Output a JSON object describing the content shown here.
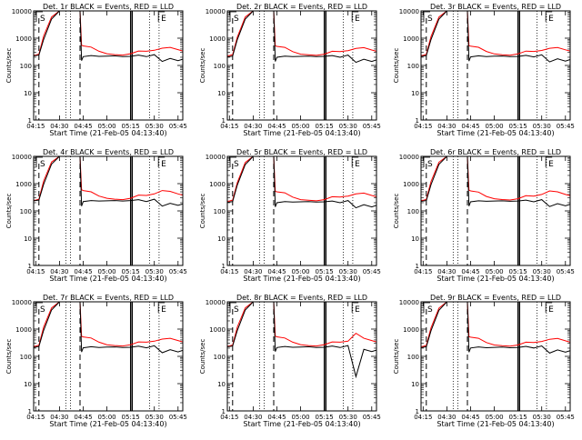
{
  "chart_data": [
    {
      "type": "line",
      "title": "Det. 1r BLACK = Events, RED = LLD",
      "xlabel": "Start Time (21-Feb-05 04:13:40)",
      "ylabel": "Counts/sec",
      "y_scale": "log",
      "ylim": [
        1,
        10000
      ],
      "x_ticks": [
        "04:15",
        "04:30",
        "04:45",
        "05:00",
        "05:15",
        "05:30",
        "05:45"
      ],
      "y_ticks": [
        "1",
        "10",
        "100",
        "1000",
        "10000"
      ],
      "annotations": [
        "S",
        "E"
      ],
      "x": [
        "04:13",
        "04:15",
        "04:17",
        "04:20",
        "04:25",
        "04:30",
        "04:35",
        "04:40",
        "04:43",
        "04:44",
        "04:45",
        "04:50",
        "04:55",
        "05:00",
        "05:05",
        "05:10",
        "05:15",
        "05:20",
        "05:25",
        "05:30",
        "05:35",
        "05:40",
        "05:45",
        "05:48"
      ],
      "series": [
        {
          "name": "Events",
          "color": "#000000",
          "values": [
            220,
            230,
            240,
            900,
            5000,
            10000,
            10000,
            10000,
            10000,
            150,
            210,
            230,
            215,
            220,
            225,
            210,
            215,
            240,
            210,
            250,
            140,
            180,
            150,
            170
          ]
        },
        {
          "name": "LLD",
          "color": "#ff0000",
          "values": [
            230,
            240,
            260,
            1200,
            6000,
            10000,
            10000,
            10000,
            10000,
            550,
            520,
            470,
            330,
            270,
            250,
            240,
            270,
            340,
            330,
            360,
            430,
            460,
            380,
            340
          ]
        }
      ]
    },
    {
      "type": "line",
      "title": "Det. 2r BLACK = Events, RED = LLD",
      "xlabel": "Start Time (21-Feb-05 04:13:40)",
      "ylabel": "Counts/sec",
      "y_scale": "log",
      "ylim": [
        1,
        10000
      ],
      "x_ticks": [
        "04:15",
        "04:30",
        "04:45",
        "05:00",
        "05:15",
        "05:30",
        "05:45"
      ],
      "y_ticks": [
        "1",
        "10",
        "100",
        "1000",
        "10000"
      ],
      "annotations": [
        "S",
        "E"
      ],
      "x": [
        "04:13",
        "04:15",
        "04:17",
        "04:20",
        "04:25",
        "04:30",
        "04:35",
        "04:40",
        "04:43",
        "04:44",
        "04:45",
        "04:50",
        "04:55",
        "05:00",
        "05:05",
        "05:10",
        "05:15",
        "05:20",
        "05:25",
        "05:30",
        "05:35",
        "05:40",
        "05:45",
        "05:48"
      ],
      "series": [
        {
          "name": "Events",
          "color": "#000000",
          "values": [
            200,
            210,
            220,
            900,
            5000,
            10000,
            10000,
            10000,
            10000,
            140,
            200,
            220,
            210,
            215,
            220,
            210,
            215,
            230,
            200,
            240,
            130,
            170,
            140,
            160
          ]
        },
        {
          "name": "LLD",
          "color": "#ff0000",
          "values": [
            220,
            230,
            250,
            1100,
            6000,
            10000,
            10000,
            10000,
            10000,
            520,
            500,
            460,
            320,
            260,
            245,
            235,
            260,
            330,
            320,
            350,
            420,
            450,
            370,
            330
          ]
        }
      ]
    },
    {
      "type": "line",
      "title": "Det. 3r BLACK = Events, RED = LLD",
      "xlabel": "Start Time (21-Feb-05 04:13:40)",
      "ylabel": "Counts/sec",
      "y_scale": "log",
      "ylim": [
        1,
        10000
      ],
      "x_ticks": [
        "04:15",
        "04:30",
        "04:45",
        "05:00",
        "05:15",
        "05:30",
        "05:45"
      ],
      "y_ticks": [
        "1",
        "10",
        "100",
        "1000",
        "10000"
      ],
      "annotations": [
        "S",
        "E"
      ],
      "x": [
        "04:13",
        "04:15",
        "04:17",
        "04:20",
        "04:25",
        "04:30",
        "04:35",
        "04:40",
        "04:43",
        "04:44",
        "04:45",
        "04:50",
        "04:55",
        "05:00",
        "05:05",
        "05:10",
        "05:15",
        "05:20",
        "05:25",
        "05:30",
        "05:35",
        "05:40",
        "05:45",
        "05:48"
      ],
      "series": [
        {
          "name": "Events",
          "color": "#000000",
          "values": [
            210,
            220,
            230,
            900,
            5000,
            10000,
            10000,
            10000,
            10000,
            145,
            205,
            225,
            210,
            218,
            222,
            212,
            214,
            235,
            205,
            245,
            135,
            175,
            145,
            165
          ]
        },
        {
          "name": "LLD",
          "color": "#ff0000",
          "values": [
            225,
            235,
            255,
            1150,
            6000,
            10000,
            10000,
            10000,
            10000,
            530,
            510,
            465,
            325,
            265,
            248,
            238,
            265,
            335,
            325,
            355,
            425,
            455,
            375,
            335
          ]
        }
      ]
    },
    {
      "type": "line",
      "title": "Det. 4r BLACK = Events, RED = LLD",
      "xlabel": "Start Time (21-Feb-05 04:13:40)",
      "ylabel": "Counts/sec",
      "y_scale": "log",
      "ylim": [
        1,
        10000
      ],
      "x_ticks": [
        "04:15",
        "04:30",
        "04:45",
        "05:00",
        "05:15",
        "05:30",
        "05:45"
      ],
      "y_ticks": [
        "1",
        "10",
        "100",
        "1000",
        "10000"
      ],
      "annotations": [
        "S",
        "E"
      ],
      "x": [
        "04:13",
        "04:15",
        "04:17",
        "04:20",
        "04:25",
        "04:30",
        "04:35",
        "04:40",
        "04:43",
        "04:44",
        "04:45",
        "04:50",
        "04:55",
        "05:00",
        "05:05",
        "05:10",
        "05:15",
        "05:20",
        "05:25",
        "05:30",
        "05:35",
        "05:40",
        "05:45",
        "05:48"
      ],
      "series": [
        {
          "name": "Events",
          "color": "#000000",
          "values": [
            230,
            240,
            250,
            950,
            5200,
            10000,
            10000,
            10000,
            10000,
            150,
            220,
            240,
            230,
            235,
            240,
            230,
            240,
            260,
            220,
            270,
            150,
            190,
            160,
            180
          ]
        },
        {
          "name": "LLD",
          "color": "#ff0000",
          "values": [
            240,
            250,
            270,
            1250,
            6200,
            10000,
            10000,
            10000,
            10000,
            600,
            560,
            500,
            350,
            290,
            270,
            260,
            290,
            380,
            370,
            420,
            560,
            520,
            420,
            380
          ]
        }
      ]
    },
    {
      "type": "line",
      "title": "Det. 5r BLACK = Events, RED = LLD",
      "xlabel": "Start Time (21-Feb-05 04:13:40)",
      "ylabel": "Counts/sec",
      "y_scale": "log",
      "ylim": [
        1,
        10000
      ],
      "x_ticks": [
        "04:15",
        "04:30",
        "04:45",
        "05:00",
        "05:15",
        "05:30",
        "05:45"
      ],
      "y_ticks": [
        "1",
        "10",
        "100",
        "1000",
        "10000"
      ],
      "annotations": [
        "S",
        "E"
      ],
      "x": [
        "04:13",
        "04:15",
        "04:17",
        "04:20",
        "04:25",
        "04:30",
        "04:35",
        "04:40",
        "04:43",
        "04:44",
        "04:45",
        "04:50",
        "04:55",
        "05:00",
        "05:05",
        "05:10",
        "05:15",
        "05:20",
        "05:25",
        "05:30",
        "05:35",
        "05:40",
        "05:45",
        "05:48"
      ],
      "series": [
        {
          "name": "Events",
          "color": "#000000",
          "values": [
            200,
            210,
            220,
            900,
            5000,
            10000,
            10000,
            10000,
            10000,
            140,
            200,
            220,
            210,
            215,
            220,
            210,
            215,
            230,
            200,
            240,
            130,
            170,
            140,
            160
          ]
        },
        {
          "name": "LLD",
          "color": "#ff0000",
          "values": [
            220,
            230,
            250,
            1100,
            6000,
            10000,
            10000,
            10000,
            10000,
            520,
            500,
            460,
            320,
            260,
            245,
            235,
            260,
            330,
            320,
            350,
            420,
            450,
            370,
            330
          ]
        }
      ]
    },
    {
      "type": "line",
      "title": "Det. 6r BLACK = Events, RED = LLD",
      "xlabel": "Start Time (21-Feb-05 04:13:40)",
      "ylabel": "Counts/sec",
      "y_scale": "log",
      "ylim": [
        1,
        10000
      ],
      "x_ticks": [
        "04:15",
        "04:30",
        "04:45",
        "05:00",
        "05:15",
        "05:30",
        "05:45"
      ],
      "y_ticks": [
        "1",
        "10",
        "100",
        "1000",
        "10000"
      ],
      "annotations": [
        "S",
        "E"
      ],
      "x": [
        "04:13",
        "04:15",
        "04:17",
        "04:20",
        "04:25",
        "04:30",
        "04:35",
        "04:40",
        "04:43",
        "04:44",
        "04:45",
        "04:50",
        "04:55",
        "05:00",
        "05:05",
        "05:10",
        "05:15",
        "05:20",
        "05:25",
        "05:30",
        "05:35",
        "05:40",
        "05:45",
        "05:48"
      ],
      "series": [
        {
          "name": "Events",
          "color": "#000000",
          "values": [
            220,
            230,
            240,
            920,
            5100,
            10000,
            10000,
            10000,
            10000,
            150,
            215,
            235,
            225,
            230,
            235,
            225,
            230,
            250,
            215,
            260,
            145,
            185,
            155,
            175
          ]
        },
        {
          "name": "LLD",
          "color": "#ff0000",
          "values": [
            235,
            245,
            265,
            1200,
            6100,
            10000,
            10000,
            10000,
            10000,
            580,
            540,
            490,
            340,
            280,
            262,
            252,
            280,
            360,
            350,
            400,
            540,
            500,
            400,
            360
          ]
        }
      ]
    },
    {
      "type": "line",
      "title": "Det. 7r BLACK = Events, RED = LLD",
      "xlabel": "Start Time (21-Feb-05 04:13:40)",
      "ylabel": "Counts/sec",
      "y_scale": "log",
      "ylim": [
        1,
        10000
      ],
      "x_ticks": [
        "04:15",
        "04:30",
        "04:45",
        "05:00",
        "05:15",
        "05:30",
        "05:45"
      ],
      "y_ticks": [
        "1",
        "10",
        "100",
        "1000",
        "10000"
      ],
      "annotations": [
        "S",
        "E"
      ],
      "x": [
        "04:13",
        "04:15",
        "04:17",
        "04:20",
        "04:25",
        "04:30",
        "04:35",
        "04:40",
        "04:43",
        "04:44",
        "04:45",
        "04:50",
        "04:55",
        "05:00",
        "05:05",
        "05:10",
        "05:15",
        "05:20",
        "05:25",
        "05:30",
        "05:35",
        "05:40",
        "05:45",
        "05:48"
      ],
      "series": [
        {
          "name": "Events",
          "color": "#000000",
          "values": [
            210,
            220,
            230,
            900,
            5000,
            10000,
            10000,
            10000,
            10000,
            145,
            205,
            225,
            212,
            218,
            222,
            212,
            216,
            238,
            206,
            246,
            136,
            176,
            146,
            166
          ]
        },
        {
          "name": "LLD",
          "color": "#ff0000",
          "values": [
            228,
            238,
            258,
            1180,
            6000,
            10000,
            10000,
            10000,
            10000,
            540,
            515,
            470,
            330,
            268,
            250,
            240,
            268,
            340,
            330,
            360,
            430,
            460,
            380,
            340
          ]
        }
      ]
    },
    {
      "type": "line",
      "title": "Det. 8r BLACK = Events, RED = LLD",
      "xlabel": "Start Time (21-Feb-05 04:13:40)",
      "ylabel": "Counts/sec",
      "y_scale": "log",
      "ylim": [
        1,
        10000
      ],
      "x_ticks": [
        "04:15",
        "04:30",
        "04:45",
        "05:00",
        "05:15",
        "05:30",
        "05:45"
      ],
      "y_ticks": [
        "1",
        "10",
        "100",
        "1000",
        "10000"
      ],
      "annotations": [
        "S",
        "E"
      ],
      "x": [
        "04:13",
        "04:15",
        "04:17",
        "04:20",
        "04:25",
        "04:30",
        "04:35",
        "04:40",
        "04:43",
        "04:44",
        "04:45",
        "04:50",
        "04:55",
        "05:00",
        "05:05",
        "05:10",
        "05:15",
        "05:20",
        "05:25",
        "05:30",
        "05:35",
        "05:40",
        "05:45",
        "05:48"
      ],
      "series": [
        {
          "name": "Events",
          "color": "#000000",
          "values": [
            220,
            230,
            240,
            900,
            5000,
            10000,
            10000,
            10000,
            10000,
            150,
            210,
            230,
            215,
            220,
            225,
            210,
            215,
            240,
            210,
            250,
            18,
            180,
            150,
            170
          ]
        },
        {
          "name": "LLD",
          "color": "#ff0000",
          "values": [
            230,
            240,
            260,
            1200,
            6000,
            10000,
            10000,
            10000,
            10000,
            550,
            520,
            470,
            330,
            270,
            250,
            240,
            270,
            340,
            330,
            360,
            700,
            460,
            380,
            340
          ]
        }
      ]
    },
    {
      "type": "line",
      "title": "Det. 9r BLACK = Events, RED = LLD",
      "xlabel": "Start Time (21-Feb-05 04:13:40)",
      "ylabel": "Counts/sec",
      "y_scale": "log",
      "ylim": [
        1,
        10000
      ],
      "x_ticks": [
        "04:15",
        "04:30",
        "04:45",
        "05:00",
        "05:15",
        "05:30",
        "05:45"
      ],
      "y_ticks": [
        "1",
        "10",
        "100",
        "1000",
        "10000"
      ],
      "annotations": [
        "S",
        "E"
      ],
      "x": [
        "04:13",
        "04:15",
        "04:17",
        "04:20",
        "04:25",
        "04:30",
        "04:35",
        "04:40",
        "04:43",
        "04:44",
        "04:45",
        "04:50",
        "04:55",
        "05:00",
        "05:05",
        "05:10",
        "05:15",
        "05:20",
        "05:25",
        "05:30",
        "05:35",
        "05:40",
        "05:45",
        "05:48"
      ],
      "series": [
        {
          "name": "Events",
          "color": "#000000",
          "values": [
            205,
            215,
            225,
            880,
            4900,
            10000,
            10000,
            10000,
            10000,
            142,
            202,
            222,
            208,
            214,
            218,
            208,
            212,
            232,
            202,
            242,
            132,
            172,
            142,
            162
          ]
        },
        {
          "name": "LLD",
          "color": "#ff0000",
          "values": [
            222,
            232,
            252,
            1120,
            5900,
            10000,
            10000,
            10000,
            10000,
            525,
            505,
            462,
            322,
            262,
            246,
            236,
            262,
            332,
            322,
            352,
            422,
            452,
            372,
            332
          ]
        }
      ]
    }
  ]
}
